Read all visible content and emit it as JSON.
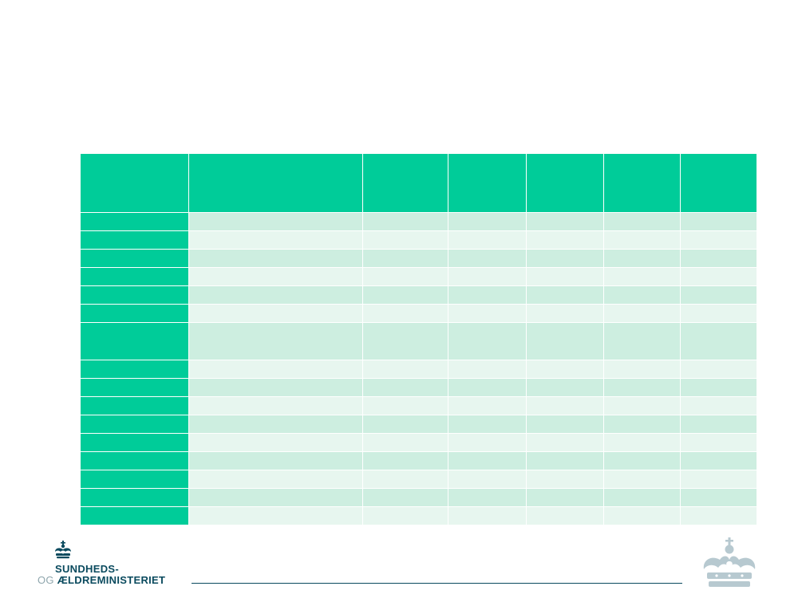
{
  "table": {
    "header_cells": [
      "",
      "",
      "",
      "",
      "",
      "",
      ""
    ],
    "rows": [
      {
        "height": "normal",
        "cells": [
          "",
          "",
          "",
          "",
          "",
          "",
          ""
        ]
      },
      {
        "height": "normal",
        "cells": [
          "",
          "",
          "",
          "",
          "",
          "",
          ""
        ]
      },
      {
        "height": "normal",
        "cells": [
          "",
          "",
          "",
          "",
          "",
          "",
          ""
        ]
      },
      {
        "height": "normal",
        "cells": [
          "",
          "",
          "",
          "",
          "",
          "",
          ""
        ]
      },
      {
        "height": "normal",
        "cells": [
          "",
          "",
          "",
          "",
          "",
          "",
          ""
        ]
      },
      {
        "height": "normal",
        "cells": [
          "",
          "",
          "",
          "",
          "",
          "",
          ""
        ]
      },
      {
        "height": "tall",
        "cells": [
          "",
          "",
          "",
          "",
          "",
          "",
          ""
        ]
      },
      {
        "height": "normal",
        "cells": [
          "",
          "",
          "",
          "",
          "",
          "",
          ""
        ]
      },
      {
        "height": "normal",
        "cells": [
          "",
          "",
          "",
          "",
          "",
          "",
          ""
        ]
      },
      {
        "height": "normal",
        "cells": [
          "",
          "",
          "",
          "",
          "",
          "",
          ""
        ]
      },
      {
        "height": "normal",
        "cells": [
          "",
          "",
          "",
          "",
          "",
          "",
          ""
        ]
      },
      {
        "height": "normal",
        "cells": [
          "",
          "",
          "",
          "",
          "",
          "",
          ""
        ]
      },
      {
        "height": "normal",
        "cells": [
          "",
          "",
          "",
          "",
          "",
          "",
          ""
        ]
      },
      {
        "height": "normal",
        "cells": [
          "",
          "",
          "",
          "",
          "",
          "",
          ""
        ]
      },
      {
        "height": "normal",
        "cells": [
          "",
          "",
          "",
          "",
          "",
          "",
          ""
        ]
      },
      {
        "height": "normal",
        "cells": [
          "",
          "",
          "",
          "",
          "",
          "",
          ""
        ]
      }
    ]
  },
  "colors": {
    "header": "#00cc99",
    "row_dark": "#cdeee0",
    "row_light": "#e7f6ef",
    "brand_text": "#0a4a5e",
    "crown_light": "#b7c9d0"
  },
  "logo": {
    "line1": "SUNDHEDS-",
    "line2_prefix": "OG ",
    "line2_main": "ÆLDREMINISTERIET",
    "crown_icon": "royal-crown-icon"
  }
}
